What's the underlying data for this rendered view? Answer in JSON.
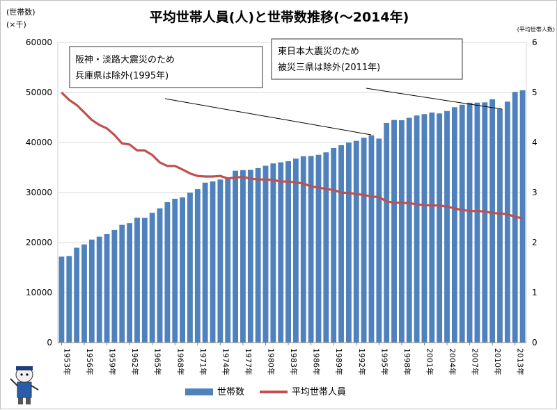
{
  "chart_data": {
    "type": "bar+line",
    "title": "平均世帯人員(人)と世帯数推移(〜2014年)",
    "left_axis_label": [
      "(世帯数)",
      "(×千)"
    ],
    "right_axis_label": "(平均世帯人数)",
    "left_ylim": [
      0,
      60000
    ],
    "left_ticks": [
      "0",
      "10000",
      "20000",
      "30000",
      "40000",
      "50000",
      "60000"
    ],
    "right_ylim": [
      0,
      6
    ],
    "right_ticks": [
      "0",
      "1",
      "2",
      "3",
      "4",
      "5",
      "6"
    ],
    "x_tick_labels": [
      "1953年",
      "1956年",
      "1959年",
      "1962年",
      "1965年",
      "1968年",
      "1971年",
      "1974年",
      "1977年",
      "1980年",
      "1983年",
      "1986年",
      "1989年",
      "1992年",
      "1995年",
      "1998年",
      "2001年",
      "2004年",
      "2007年",
      "2010年",
      "2013年"
    ],
    "years": [
      1953,
      1954,
      1955,
      1956,
      1957,
      1958,
      1959,
      1960,
      1961,
      1962,
      1963,
      1964,
      1965,
      1966,
      1967,
      1968,
      1969,
      1970,
      1971,
      1972,
      1973,
      1974,
      1975,
      1976,
      1977,
      1978,
      1979,
      1980,
      1981,
      1982,
      1983,
      1984,
      1985,
      1986,
      1987,
      1988,
      1989,
      1990,
      1991,
      1992,
      1993,
      1994,
      1995,
      1996,
      1997,
      1998,
      1999,
      2000,
      2001,
      2002,
      2003,
      2004,
      2005,
      2006,
      2007,
      2008,
      2009,
      2010,
      2011,
      2012,
      2013,
      2014
    ],
    "series": [
      {
        "name": "世帯数",
        "type": "bar",
        "axis": "left",
        "color": "#4f81bd",
        "values": [
          17180,
          17300,
          18960,
          19620,
          20590,
          21170,
          21680,
          22520,
          23530,
          23870,
          24950,
          24920,
          25940,
          26830,
          28070,
          28750,
          29010,
          29940,
          30680,
          31970,
          32210,
          32590,
          32880,
          34350,
          34470,
          34530,
          34880,
          35340,
          35810,
          36030,
          36250,
          36770,
          37240,
          37290,
          37540,
          38020,
          38900,
          39450,
          39970,
          40330,
          40950,
          41430,
          40770,
          43890,
          44500,
          44440,
          44920,
          45390,
          45660,
          45980,
          45800,
          46290,
          47040,
          47530,
          47940,
          47960,
          48010,
          48640,
          46680,
          48170,
          50110,
          50430
        ]
      },
      {
        "name": "平均世帯人員",
        "type": "line",
        "axis": "right",
        "color": "#c0504d",
        "values": [
          5.0,
          4.85,
          4.75,
          4.6,
          4.45,
          4.35,
          4.28,
          4.15,
          3.98,
          3.96,
          3.84,
          3.84,
          3.75,
          3.6,
          3.53,
          3.53,
          3.46,
          3.38,
          3.33,
          3.32,
          3.32,
          3.33,
          3.28,
          3.3,
          3.31,
          3.28,
          3.26,
          3.26,
          3.25,
          3.22,
          3.22,
          3.2,
          3.18,
          3.12,
          3.1,
          3.07,
          3.05,
          3.0,
          2.99,
          2.97,
          2.95,
          2.92,
          2.91,
          2.82,
          2.8,
          2.79,
          2.79,
          2.76,
          2.75,
          2.74,
          2.74,
          2.72,
          2.68,
          2.65,
          2.63,
          2.63,
          2.62,
          2.59,
          2.58,
          2.57,
          2.51,
          2.49
        ]
      }
    ],
    "annotations": [
      {
        "lines": [
          "阪神・淡路大震災のため",
          "兵庫県は除外(1995年)"
        ],
        "target_year": 1995
      },
      {
        "lines": [
          "東日本大震災のため",
          "被災三県は除外(2011年)"
        ],
        "target_year": 2011
      }
    ],
    "legend": {
      "position": "bottom",
      "items": [
        "世帯数",
        "平均世帯人員"
      ]
    },
    "grid": true
  }
}
